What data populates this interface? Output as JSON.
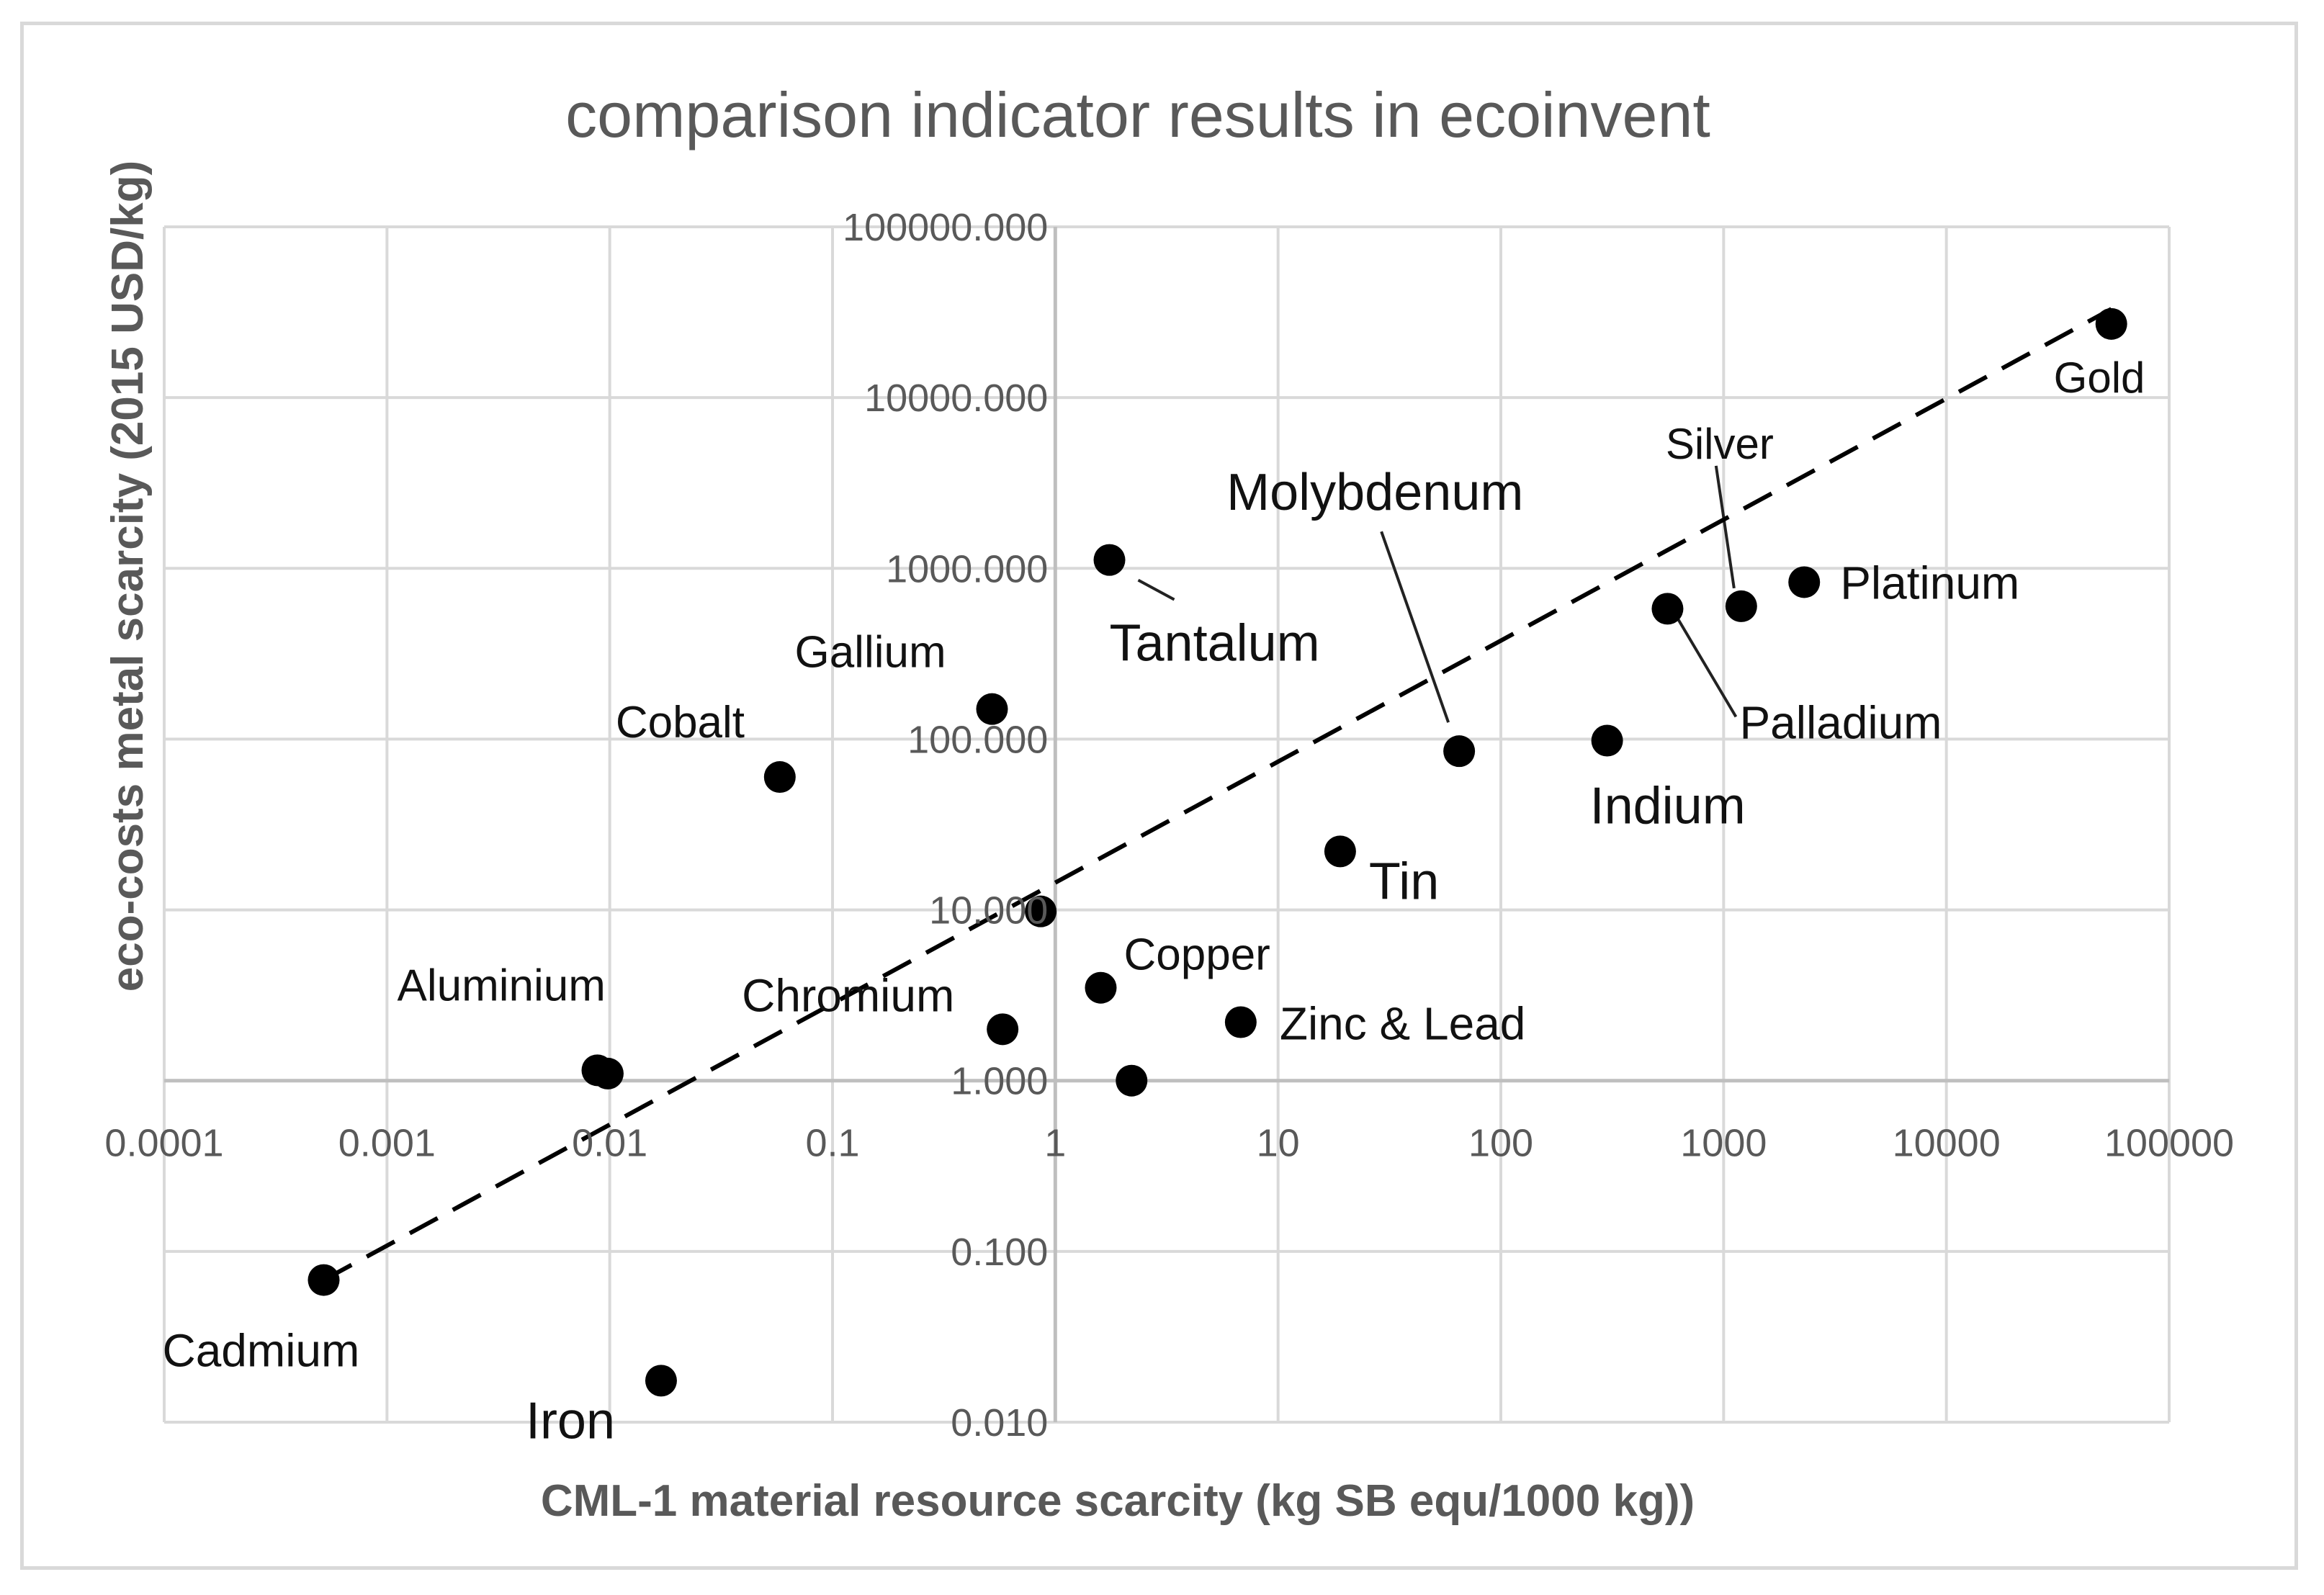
{
  "chart_data": {
    "type": "scatter",
    "title": "comparison indicator results in ecoinvent",
    "xlabel": "CML-1 material resource scarcity (kg SB equ/1000 kg))",
    "ylabel": "eco-costs metal scarcity (2015 USD/kg)",
    "x_scale": "log",
    "y_scale": "log",
    "xlim": [
      0.0001,
      100000
    ],
    "ylim": [
      0.01,
      100000
    ],
    "x_ticks": [
      "0.0001",
      "0.001",
      "0.01",
      "0.1",
      "1",
      "10",
      "100",
      "1000",
      "10000",
      "100000"
    ],
    "y_ticks": [
      "0.010",
      "0.100",
      "1.000",
      "10.000",
      "100.000",
      "1000.000",
      "10000.000",
      "100000.000"
    ],
    "points": [
      {
        "name": "Gold",
        "x": 55000,
        "y": 27000
      },
      {
        "name": "Silver",
        "x": 1200,
        "y": 600
      },
      {
        "name": "Platinum",
        "x": 2300,
        "y": 830
      },
      {
        "name": "Palladium",
        "x": 560,
        "y": 580
      },
      {
        "name": "Indium",
        "x": 300,
        "y": 98
      },
      {
        "name": "Molybdenum",
        "x": 65,
        "y": 85
      },
      {
        "name": "Tin",
        "x": 19,
        "y": 22
      },
      {
        "name": "Tantalum",
        "x": 1.75,
        "y": 1120
      },
      {
        "name": "Gallium",
        "x": 0.52,
        "y": 150
      },
      {
        "name": "Cobalt",
        "x": 0.058,
        "y": 60
      },
      {
        "name": "Copper",
        "x": 1.6,
        "y": 3.5
      },
      {
        "name": "Zinc & Lead",
        "x": 6.8,
        "y": 2.2
      },
      {
        "name": "Chromium",
        "x": 0.58,
        "y": 2.0
      },
      {
        "name": "",
        "x": 0.86,
        "y": 9.8
      },
      {
        "name": "",
        "x": 2.2,
        "y": 1.0
      },
      {
        "name": "Aluminium",
        "x": 0.0088,
        "y": 1.15
      },
      {
        "name": "",
        "x": 0.0098,
        "y": 1.1
      },
      {
        "name": "Cadmium",
        "x": 0.00052,
        "y": 0.068
      },
      {
        "name": "Iron",
        "x": 0.017,
        "y": 0.0175
      }
    ],
    "trendline": {
      "style": "dashed",
      "from": {
        "x": 0.00052,
        "y": 0.068
      },
      "to": {
        "x": 55000,
        "y": 33000
      }
    }
  }
}
